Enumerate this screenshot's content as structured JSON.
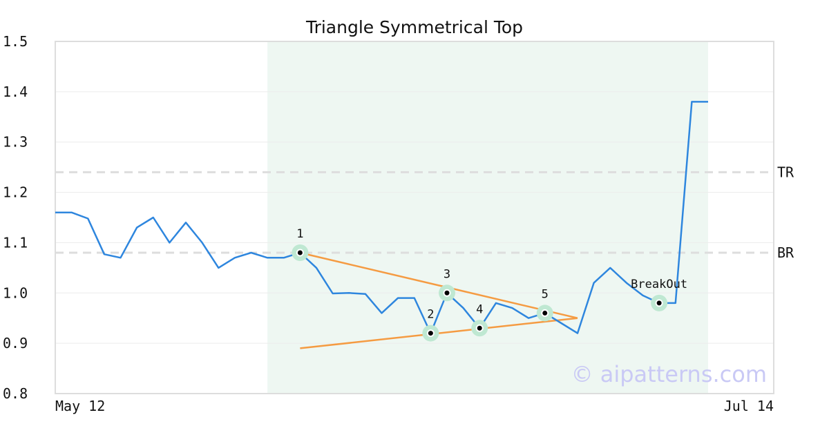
{
  "chart_data": {
    "type": "line",
    "title": "Triangle Symmetrical Top",
    "xlabel": "",
    "ylabel": "",
    "ylim": [
      0.8,
      1.5
    ],
    "yticks": [
      "0.8",
      "0.9",
      "1.0",
      "1.1",
      "1.2",
      "1.3",
      "1.4",
      "1.5"
    ],
    "xtick_labels": [
      "May 12",
      "Jul 14"
    ],
    "grid": "horizontal",
    "colors": {
      "price": "#2e86de",
      "trendline": "#f59b42",
      "pattern_band": "#eef7f2",
      "marker_halo": "#bfe8d2",
      "reference_line": "#dddddd",
      "watermark": "#c9c9f5"
    },
    "series": [
      {
        "values": [
          1.16,
          1.16,
          1.148,
          1.077,
          1.07,
          1.13,
          1.15,
          1.1,
          1.14,
          1.1,
          1.05,
          1.07,
          1.08,
          1.07,
          1.07,
          1.08,
          1.05,
          0.999,
          1.0,
          0.998,
          0.96,
          0.99,
          0.99,
          0.92,
          1.0,
          0.97,
          0.93,
          0.98,
          0.97,
          0.95,
          0.96,
          0.94,
          0.92,
          1.02,
          1.05,
          1.02,
          0.995,
          0.98,
          0.98,
          1.38,
          1.38
        ]
      }
    ],
    "pattern_window": {
      "start_index": 13,
      "end_index": 40
    },
    "reference_lines": [
      {
        "label": "TR",
        "value": 1.24
      },
      {
        "label": "BR",
        "value": 1.08
      }
    ],
    "trendlines": [
      {
        "from": [
          15,
          1.08
        ],
        "to": [
          32,
          0.95
        ]
      },
      {
        "from": [
          15,
          0.89
        ],
        "to": [
          32,
          0.95
        ]
      }
    ],
    "pattern_points": [
      {
        "label": "1",
        "index": 15,
        "value": 1.08,
        "label_pos": "above"
      },
      {
        "label": "2",
        "index": 23,
        "value": 0.92,
        "label_pos": "above"
      },
      {
        "label": "3",
        "index": 24,
        "value": 1.0,
        "label_pos": "above"
      },
      {
        "label": "4",
        "index": 26,
        "value": 0.93,
        "label_pos": "above"
      },
      {
        "label": "5",
        "index": 30,
        "value": 0.96,
        "label_pos": "above"
      },
      {
        "label": "BreakOut",
        "index": 37,
        "value": 0.98,
        "label_pos": "above"
      }
    ],
    "watermark": "© aipatterns.com"
  }
}
